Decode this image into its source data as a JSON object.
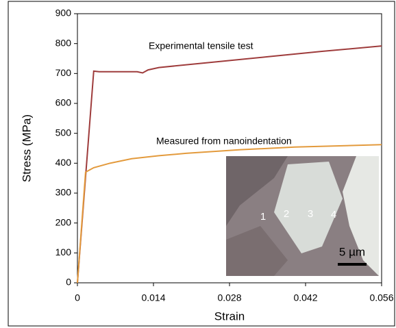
{
  "chart_data": {
    "type": "line",
    "xlabel": "Strain",
    "ylabel": "Stress (MPa)",
    "xlim": [
      0,
      0.056
    ],
    "xticks": [
      0,
      0.014,
      0.028,
      0.042,
      0.056
    ],
    "ylim": [
      0,
      900
    ],
    "yticks": [
      0,
      100,
      200,
      300,
      400,
      500,
      600,
      700,
      800,
      900
    ],
    "series": [
      {
        "name": "Experimental tensile test",
        "color": "#9e3b3b",
        "x": [
          0,
          0.003,
          0.004,
          0.011,
          0.012,
          0.013,
          0.015,
          0.025,
          0.035,
          0.045,
          0.056
        ],
        "values": [
          0,
          708,
          706,
          706,
          702,
          712,
          720,
          738,
          756,
          774,
          792
        ]
      },
      {
        "name": "Measured from nanoindentation",
        "color": "#e39a3c",
        "x": [
          0,
          0.0015,
          0.003,
          0.006,
          0.01,
          0.015,
          0.02,
          0.03,
          0.04,
          0.056
        ],
        "values": [
          0,
          370,
          385,
          400,
          415,
          425,
          433,
          445,
          454,
          462
        ]
      }
    ],
    "inset_labels": [
      "1",
      "2",
      "3",
      "4"
    ],
    "scale_bar": "5 µm"
  }
}
